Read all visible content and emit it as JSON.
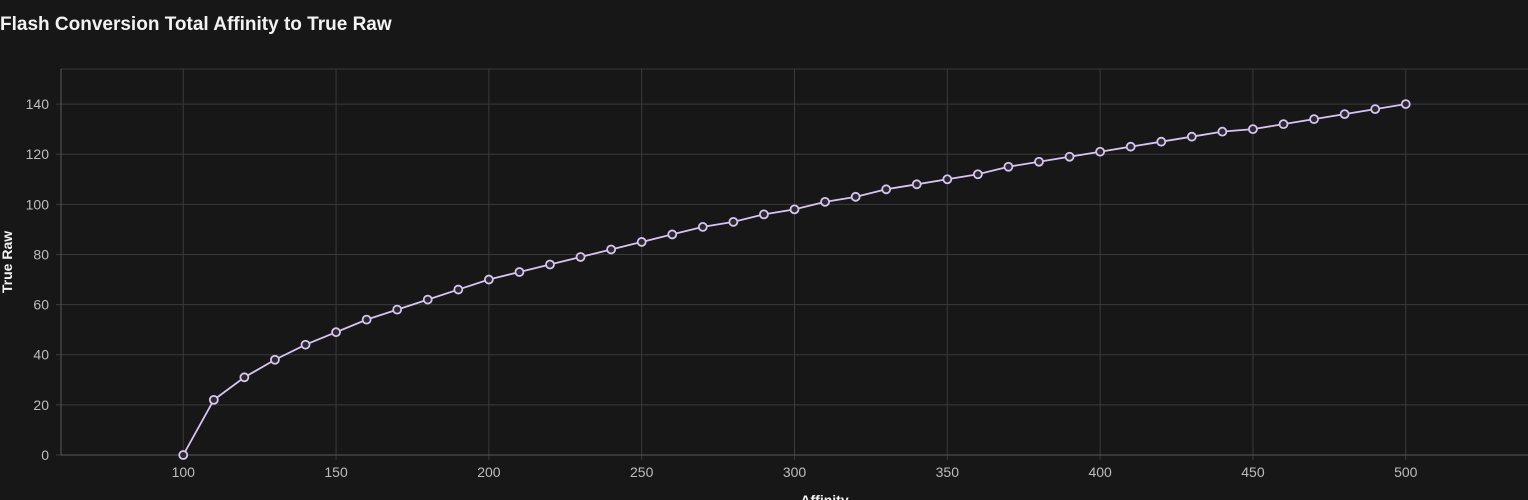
{
  "chart_data": {
    "type": "line",
    "title": "Flash Conversion Total Affinity to True Raw",
    "xlabel": "Affinity",
    "ylabel": "True Raw",
    "xlim": [
      60,
      540
    ],
    "ylim": [
      0,
      154
    ],
    "x_ticks": [
      100,
      150,
      200,
      250,
      300,
      350,
      400,
      450,
      500
    ],
    "y_ticks": [
      0,
      20,
      40,
      60,
      80,
      100,
      120,
      140
    ],
    "grid": true,
    "line_color": "#d7c4f4",
    "marker_fill": "#2a2a2a",
    "series": [
      {
        "x": [
          100,
          110,
          120,
          130,
          140,
          150,
          160,
          170,
          180,
          190,
          200,
          210,
          220,
          230,
          240,
          250,
          260,
          270,
          280,
          290,
          300,
          310,
          320,
          330,
          340,
          350,
          360,
          370,
          380,
          390,
          400,
          410,
          420,
          430,
          440,
          450,
          460,
          470,
          480,
          490,
          500
        ],
        "values": [
          0,
          22,
          31,
          38,
          44,
          49,
          54,
          58,
          62,
          66,
          70,
          73,
          76,
          79,
          82,
          85,
          88,
          91,
          93,
          96,
          98,
          101,
          103,
          106,
          108,
          110,
          112,
          115,
          117,
          119,
          121,
          123,
          125,
          127,
          129,
          130,
          132,
          134,
          136,
          138,
          140
        ]
      }
    ]
  }
}
